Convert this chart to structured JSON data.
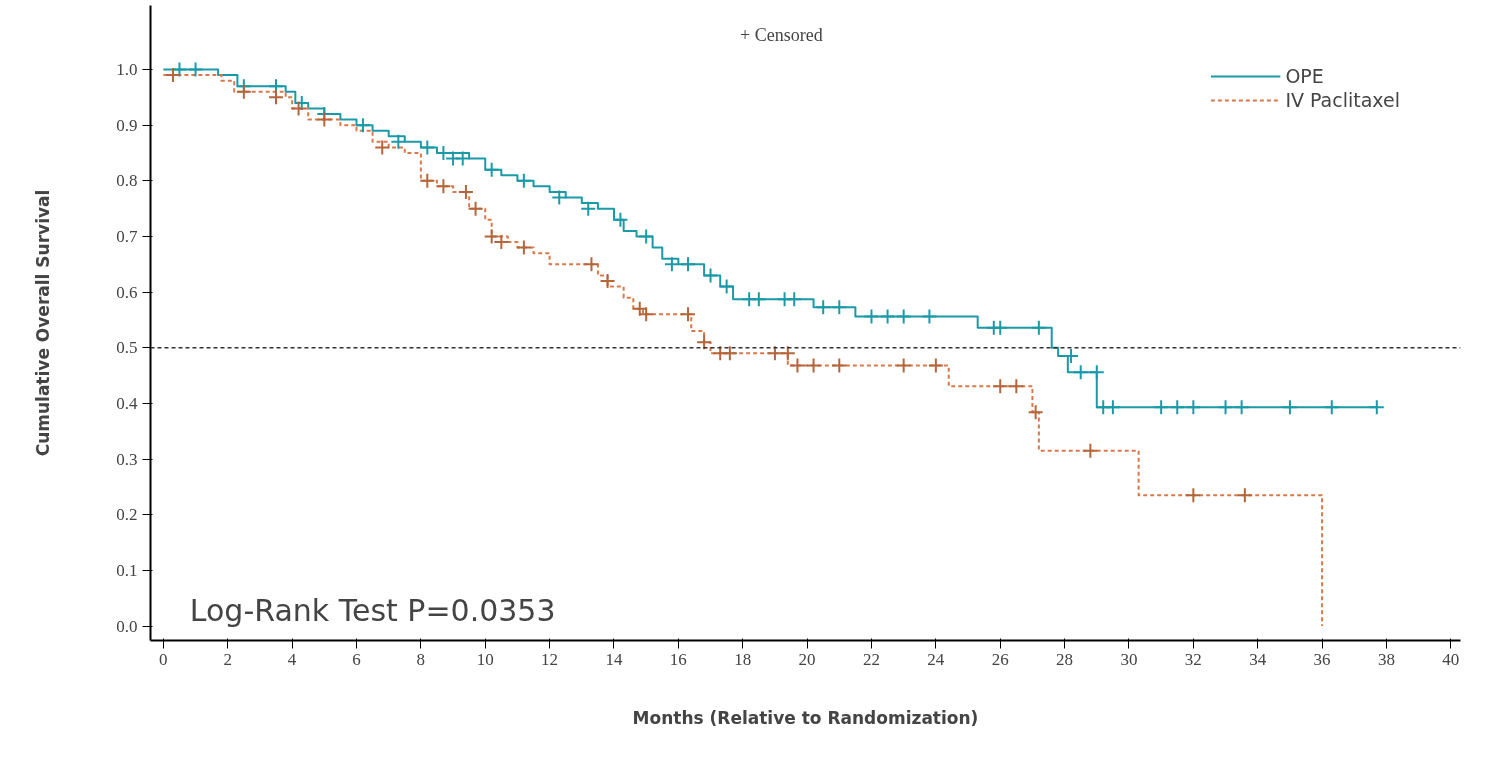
{
  "chart_data": {
    "type": "step",
    "xlabel": "Months (Relative to Randomization)",
    "ylabel": "Cumulative Overall Survival",
    "xlim": [
      -0.4,
      40.3
    ],
    "ylim": [
      -0.026,
      1.115
    ],
    "xticks": [
      0,
      2,
      4,
      6,
      8,
      10,
      12,
      14,
      16,
      18,
      20,
      22,
      24,
      26,
      28,
      30,
      32,
      34,
      36,
      38,
      40
    ],
    "yticks": [
      {
        "value": 0,
        "label": "0.0"
      },
      0.1,
      0.2,
      0.3,
      0.4,
      0.5,
      0.6,
      0.7,
      0.8,
      0.9,
      {
        "value": 1,
        "label": "1.0"
      }
    ],
    "grid": false,
    "legend": "top right",
    "ref_lines": [
      {
        "axis": "y",
        "value": 0.5,
        "color": "#333333",
        "line_style": "dashed"
      }
    ],
    "annotations": [
      "+ Censored",
      "Log-Rank Test P=0.0353"
    ],
    "series": [
      {
        "name": "OPE",
        "color": "#1a9aa8",
        "line_style": "solid",
        "x": [
          0,
          1.7,
          2.3,
          3.8,
          4.1,
          4.5,
          5.0,
          5.5,
          6.0,
          6.5,
          7.0,
          7.5,
          8.0,
          8.5,
          9.5,
          10.0,
          10.5,
          11.0,
          11.5,
          12.0,
          12.5,
          13.0,
          13.5,
          14.0,
          14.3,
          14.7,
          15.2,
          15.5,
          16.0,
          16.8,
          17.3,
          17.7,
          20.2,
          21.5,
          25.3,
          27.6,
          27.8,
          28.1,
          29.0,
          37.7
        ],
        "values": [
          1.0,
          0.99,
          0.97,
          0.96,
          0.94,
          0.93,
          0.92,
          0.91,
          0.9,
          0.89,
          0.88,
          0.87,
          0.86,
          0.85,
          0.84,
          0.82,
          0.81,
          0.8,
          0.79,
          0.78,
          0.77,
          0.76,
          0.75,
          0.73,
          0.71,
          0.7,
          0.68,
          0.66,
          0.65,
          0.63,
          0.61,
          0.587,
          0.573,
          0.556,
          0.536,
          0.5,
          0.485,
          0.456,
          0.393,
          0.393
        ]
      },
      {
        "name": "IV Paclitaxel",
        "color": "#d9784a",
        "line_style": "dashed",
        "x": [
          0,
          1.8,
          2.2,
          3.8,
          4.0,
          4.5,
          5.5,
          6.0,
          6.5,
          7.0,
          7.5,
          8.0,
          8.5,
          9.0,
          9.5,
          10.0,
          10.2,
          10.7,
          11.0,
          11.5,
          12.0,
          13.5,
          13.8,
          14.3,
          14.6,
          14.9,
          16.4,
          16.8,
          17.0,
          19.4,
          24.4,
          27.0,
          27.2,
          30.3,
          36.0
        ],
        "values": [
          0.99,
          0.98,
          0.96,
          0.95,
          0.93,
          0.91,
          0.9,
          0.89,
          0.87,
          0.86,
          0.85,
          0.8,
          0.79,
          0.78,
          0.75,
          0.73,
          0.7,
          0.69,
          0.68,
          0.67,
          0.65,
          0.63,
          0.61,
          0.59,
          0.57,
          0.56,
          0.53,
          0.51,
          0.49,
          0.468,
          0.431,
          0.384,
          0.315,
          0.235,
          0
        ]
      },
      {
        "type": "scatter",
        "marker": "cross",
        "color": "#1a9aa8",
        "x": [
          0.5,
          1.0,
          2.5,
          3.5,
          4.3,
          5.0,
          6.2,
          7.3,
          8.2,
          8.7,
          9.0,
          9.3,
          10.2,
          11.2,
          12.3,
          13.2,
          14.2,
          15.0,
          15.8,
          16.3,
          17.0,
          17.5,
          18.2,
          18.5,
          19.3,
          19.6,
          20.5,
          21.0,
          22.0,
          22.5,
          23.0,
          23.8,
          25.8,
          26.0,
          27.2,
          28.2,
          28.5,
          29.0,
          29.2,
          29.5,
          31.0,
          31.5,
          32.0,
          33.0,
          33.5,
          35.0,
          36.3,
          37.7
        ],
        "values": [
          1.0,
          1.0,
          0.97,
          0.97,
          0.94,
          0.92,
          0.9,
          0.87,
          0.86,
          0.85,
          0.84,
          0.84,
          0.82,
          0.8,
          0.77,
          0.75,
          0.73,
          0.7,
          0.65,
          0.65,
          0.63,
          0.61,
          0.587,
          0.587,
          0.587,
          0.587,
          0.573,
          0.573,
          0.556,
          0.556,
          0.556,
          0.556,
          0.536,
          0.536,
          0.536,
          0.485,
          0.456,
          0.456,
          0.393,
          0.393,
          0.393,
          0.393,
          0.393,
          0.393,
          0.393,
          0.393,
          0.393,
          0.393
        ]
      },
      {
        "type": "scatter",
        "marker": "cross",
        "color": "#b5653a",
        "x": [
          0.3,
          2.5,
          3.5,
          4.2,
          5.0,
          6.8,
          8.2,
          8.7,
          9.4,
          9.7,
          10.2,
          10.5,
          11.2,
          13.3,
          13.8,
          14.8,
          15.0,
          16.3,
          16.8,
          17.3,
          17.6,
          19.0,
          19.4,
          19.7,
          20.2,
          21.0,
          23.0,
          24.0,
          26.0,
          26.5,
          27.1,
          28.8,
          32.0,
          33.6
        ],
        "values": [
          0.99,
          0.96,
          0.95,
          0.93,
          0.91,
          0.86,
          0.8,
          0.79,
          0.78,
          0.75,
          0.7,
          0.69,
          0.68,
          0.65,
          0.62,
          0.57,
          0.56,
          0.56,
          0.51,
          0.49,
          0.49,
          0.49,
          0.49,
          0.468,
          0.468,
          0.468,
          0.468,
          0.468,
          0.431,
          0.431,
          0.384,
          0.315,
          0.235,
          0.235
        ]
      }
    ]
  }
}
